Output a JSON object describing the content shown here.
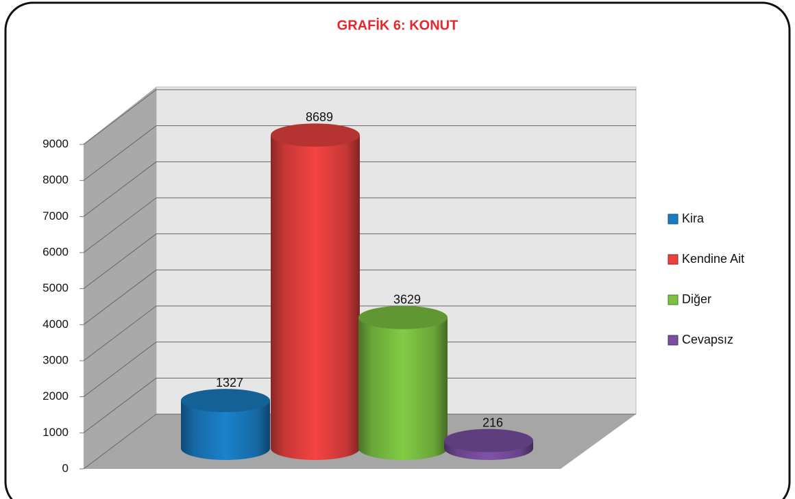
{
  "chart_data": {
    "type": "bar3d",
    "title": "GRAFİK 6: KONUT",
    "series": [
      {
        "name": "Kira",
        "color": "#1a7cc1",
        "values": [
          1327
        ]
      },
      {
        "name": "Kendine Ait",
        "color": "#e8413f",
        "values": [
          8689
        ]
      },
      {
        "name": "Diğer",
        "color": "#7cc242",
        "values": [
          3629
        ]
      },
      {
        "name": "Cevapsız",
        "color": "#7a4fa0",
        "values": [
          216
        ]
      }
    ],
    "ylim": [
      0,
      9000
    ],
    "yticks": [
      0,
      1000,
      2000,
      3000,
      4000,
      5000,
      6000,
      7000,
      8000,
      9000
    ],
    "grid": true,
    "legend": "right"
  }
}
